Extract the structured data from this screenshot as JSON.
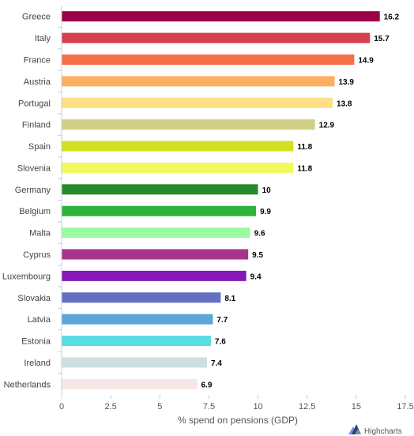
{
  "chart_data": {
    "type": "bar",
    "orientation": "horizontal",
    "categories": [
      "Greece",
      "Italy",
      "France",
      "Austria",
      "Portugal",
      "Finland",
      "Spain",
      "Slovenia",
      "Germany",
      "Belgium",
      "Malta",
      "Cyprus",
      "Luxembourg",
      "Slovakia",
      "Latvia",
      "Estonia",
      "Ireland",
      "Netherlands"
    ],
    "values": [
      16.2,
      15.7,
      14.9,
      13.9,
      13.8,
      12.9,
      11.8,
      11.8,
      10,
      9.9,
      9.6,
      9.5,
      9.4,
      8.1,
      7.7,
      7.6,
      7.4,
      6.9
    ],
    "value_labels": [
      "16.2",
      "15.7",
      "14.9",
      "13.9",
      "13.8",
      "12.9",
      "11.8",
      "11.8",
      "10",
      "9.9",
      "9.6",
      "9.5",
      "9.4",
      "8.1",
      "7.7",
      "7.6",
      "7.4",
      "6.9"
    ],
    "colors": [
      "#9b0048",
      "#d4404f",
      "#f56f47",
      "#fdaf61",
      "#fedf88",
      "#d0cf85",
      "#d1e121",
      "#f0fa5a",
      "#298a2c",
      "#2db33a",
      "#9afc9e",
      "#a7338b",
      "#8518b7",
      "#6470c1",
      "#5ba5d8",
      "#59dce2",
      "#cfdfdf",
      "#f6e6e6"
    ],
    "title": "",
    "xlabel": "% spend on pensions (GDP)",
    "ylabel": "",
    "xlim": [
      0,
      17.5
    ],
    "ticks": [
      "0",
      "2.5",
      "5",
      "7.5",
      "10",
      "12.5",
      "15",
      "17.5"
    ],
    "tick_values": [
      0,
      2.5,
      5,
      7.5,
      10,
      12.5,
      15,
      17.5
    ],
    "grid": false,
    "legend": "none"
  },
  "credits": {
    "label": "Highcharts",
    "icon": "highcharts-logo-icon"
  }
}
